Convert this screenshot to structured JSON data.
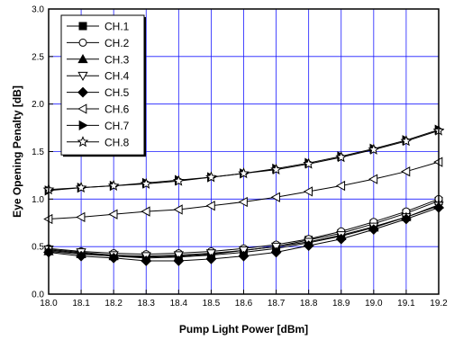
{
  "chart_data": {
    "type": "line",
    "title": "",
    "xlabel": "Pump Light Power [dBm]",
    "ylabel": "Eye Opening Penalty [dB]",
    "xlim": [
      18.0,
      19.2
    ],
    "ylim": [
      0.0,
      3.0
    ],
    "x_ticks": [
      18.0,
      18.1,
      18.2,
      18.3,
      18.4,
      18.5,
      18.6,
      18.7,
      18.8,
      18.9,
      19.0,
      19.1,
      19.2
    ],
    "x_tick_labels": [
      "18.0",
      "18.1",
      "18.2",
      "18.3",
      "18.4",
      "18.5",
      "18.6",
      "18.7",
      "18.8",
      "18.9",
      "19.0",
      "19.1",
      "19.2"
    ],
    "y_ticks": [
      0.0,
      0.5,
      1.0,
      1.5,
      2.0,
      2.5,
      3.0
    ],
    "y_tick_labels": [
      "0.0",
      "0.5",
      "1.0",
      "1.5",
      "2.0",
      "2.5",
      "3.0"
    ],
    "grid": true,
    "legend_position": "top-left",
    "x": [
      18.0,
      18.1,
      18.2,
      18.3,
      18.4,
      18.5,
      18.6,
      18.7,
      18.8,
      18.9,
      19.0,
      19.1,
      19.2
    ],
    "series": [
      {
        "name": "CH.1",
        "marker": "square-filled",
        "values": [
          0.46,
          0.43,
          0.4,
          0.39,
          0.4,
          0.42,
          0.46,
          0.5,
          0.57,
          0.64,
          0.74,
          0.85,
          0.98
        ]
      },
      {
        "name": "CH.2",
        "marker": "circle-open",
        "values": [
          0.48,
          0.45,
          0.43,
          0.42,
          0.43,
          0.45,
          0.48,
          0.52,
          0.58,
          0.66,
          0.76,
          0.87,
          1.0
        ]
      },
      {
        "name": "CH.3",
        "marker": "triangle-up-filled",
        "values": [
          0.45,
          0.42,
          0.4,
          0.38,
          0.39,
          0.41,
          0.44,
          0.48,
          0.54,
          0.61,
          0.7,
          0.81,
          0.94
        ]
      },
      {
        "name": "CH.4",
        "marker": "triangle-down-open",
        "values": [
          0.47,
          0.44,
          0.41,
          0.4,
          0.41,
          0.43,
          0.46,
          0.5,
          0.55,
          0.62,
          0.71,
          0.81,
          0.93
        ]
      },
      {
        "name": "CH.5",
        "marker": "diamond-filled",
        "values": [
          0.44,
          0.4,
          0.38,
          0.35,
          0.35,
          0.37,
          0.4,
          0.44,
          0.51,
          0.58,
          0.68,
          0.79,
          0.91
        ]
      },
      {
        "name": "CH.6",
        "marker": "triangle-left-open",
        "values": [
          0.79,
          0.81,
          0.84,
          0.87,
          0.89,
          0.93,
          0.97,
          1.02,
          1.08,
          1.14,
          1.21,
          1.29,
          1.39
        ]
      },
      {
        "name": "CH.7",
        "marker": "triangle-right-filled",
        "values": [
          1.09,
          1.12,
          1.14,
          1.17,
          1.2,
          1.23,
          1.27,
          1.32,
          1.38,
          1.45,
          1.53,
          1.62,
          1.73
        ]
      },
      {
        "name": "CH.8",
        "marker": "star-open",
        "values": [
          1.1,
          1.12,
          1.14,
          1.16,
          1.19,
          1.23,
          1.27,
          1.31,
          1.37,
          1.44,
          1.52,
          1.61,
          1.72
        ]
      }
    ]
  }
}
